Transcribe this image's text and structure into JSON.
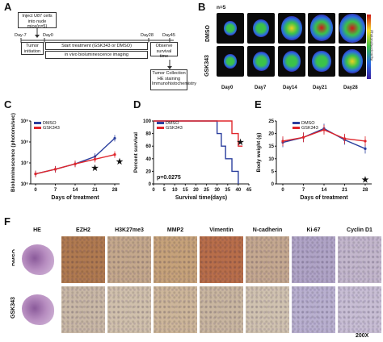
{
  "panels": {
    "a": "A",
    "b": "B",
    "c": "C",
    "d": "D",
    "e": "E",
    "f": "F"
  },
  "timeline": {
    "inject_box": "Inject U87 cells into nude mice(n=5)",
    "tumor_initiation": "Tumor initiation",
    "start_treatment": "Start treatment (GSK343 or DMSO)",
    "imaging": "in vivo bioluminescence imaging",
    "observe": "Observe survival time",
    "collection": "Tumor Collection HE staining Immunohistochemistry",
    "days": [
      "Day-7",
      "Day0",
      "Day28",
      "Day45"
    ]
  },
  "imaging_panel": {
    "n_label": "n=5",
    "rows": [
      "DMSO",
      "GSK343"
    ],
    "days": [
      "Day0",
      "Day7",
      "Day14",
      "Day21",
      "Day28"
    ],
    "colorbar_label": "Photons/sec/cm²/sr",
    "intensity": {
      "DMSO": [
        0.25,
        0.45,
        0.7,
        0.85,
        1.0
      ],
      "GSK343": [
        0.25,
        0.5,
        0.55,
        0.6,
        0.75
      ]
    }
  },
  "colors": {
    "dmso": "#2b3f9e",
    "gsk": "#e0262b"
  },
  "chart_data": [
    {
      "type": "line",
      "xlabel": "Days of treatment",
      "ylabel": "Bioluminescence (photons/sec)",
      "x": [
        0,
        7,
        14,
        21,
        28
      ],
      "xticks": [
        "0",
        "7",
        "14",
        "21",
        "28"
      ],
      "yticks": [
        "10⁶",
        "10⁷",
        "10⁸",
        "10⁹"
      ],
      "yscale": "log",
      "ylim": [
        1000000,
        1000000000
      ],
      "series": [
        {
          "name": "DMSO",
          "values": [
            3000000,
            5000000,
            9000000,
            20000000,
            150000000
          ]
        },
        {
          "name": "GSK343",
          "values": [
            3000000,
            5000000,
            9000000,
            15000000,
            25000000
          ]
        }
      ],
      "annotations": [
        "★",
        "★"
      ]
    },
    {
      "type": "line",
      "xlabel": "Survival time(days)",
      "ylabel": "Percent survival",
      "xticks": [
        "0",
        "5",
        "10",
        "15",
        "20",
        "25",
        "30",
        "35",
        "40",
        "45"
      ],
      "yticks": [
        "0",
        "20",
        "40",
        "60",
        "80",
        "100"
      ],
      "xlim": [
        0,
        45
      ],
      "ylim": [
        0,
        100
      ],
      "series": [
        {
          "name": "DMSO",
          "x": [
            0,
            30,
            30,
            32,
            32,
            34,
            34,
            37,
            37,
            40,
            40
          ],
          "values": [
            100,
            100,
            80,
            80,
            60,
            60,
            40,
            40,
            20,
            20,
            0
          ]
        },
        {
          "name": "GSK343",
          "x": [
            0,
            37,
            37,
            40,
            40,
            42
          ],
          "values": [
            100,
            100,
            80,
            80,
            60,
            60
          ]
        }
      ],
      "pvalue": "p=0.0275",
      "annotations": [
        "★"
      ]
    },
    {
      "type": "line",
      "xlabel": "Days of treatment",
      "ylabel": "Body weight (g)",
      "x": [
        0,
        7,
        14,
        21,
        28
      ],
      "xticks": [
        "0",
        "7",
        "14",
        "21",
        "28"
      ],
      "yticks": [
        "0",
        "5",
        "10",
        "15",
        "20",
        "25"
      ],
      "ylim": [
        0,
        25
      ],
      "series": [
        {
          "name": "DMSO",
          "values": [
            16.5,
            18.5,
            22,
            17.5,
            14
          ]
        },
        {
          "name": "GSK343",
          "values": [
            17,
            18.5,
            21.5,
            18,
            17
          ]
        }
      ],
      "annotations": [
        "★"
      ]
    }
  ],
  "histology": {
    "columns": [
      "HE",
      "EZH2",
      "H3K27me3",
      "MMP2",
      "Vimentin",
      "N-cadherin",
      "Ki-67",
      "Cyclin D1"
    ],
    "rows": [
      "DMSO",
      "GSK343"
    ],
    "magnification": "200X",
    "tile_colors": {
      "DMSO": [
        "#f5f0f2",
        "#b07a50",
        "#c4a88c",
        "#c6a27a",
        "#b86e4a",
        "#c4a890",
        "#b0a4c6",
        "#c3b7cc"
      ],
      "GSK343": [
        "#f5f0f2",
        "#c9b8a6",
        "#d0c0ac",
        "#cdb69a",
        "#c9b6a0",
        "#d0c2b0",
        "#b9b0cf",
        "#c8bed4"
      ]
    }
  }
}
